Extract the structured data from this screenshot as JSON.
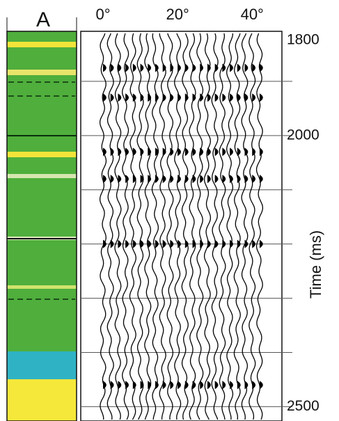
{
  "chart_data": {
    "type": "wiggle",
    "panel_label": "A",
    "y_label": "Time (ms)",
    "xlim": [
      0,
      45
    ],
    "xticks": [
      {
        "value": 0,
        "label": "0°"
      },
      {
        "value": 20,
        "label": "20°"
      },
      {
        "value": 40,
        "label": "40°"
      }
    ],
    "ylim": [
      1800,
      2520
    ],
    "yticks": [
      1800,
      2000,
      2500
    ],
    "minor_yticks": [
      1900,
      2100,
      2200,
      2300,
      2400
    ],
    "trace_angles": [
      0,
      2,
      4,
      6,
      8,
      10,
      12,
      14,
      16,
      18,
      20,
      22,
      24,
      26,
      28,
      30,
      32,
      34,
      36,
      38,
      40,
      42
    ],
    "reflections": [
      1875,
      1930,
      2030,
      2080,
      2200,
      2460
    ],
    "color": "#000000"
  }
}
